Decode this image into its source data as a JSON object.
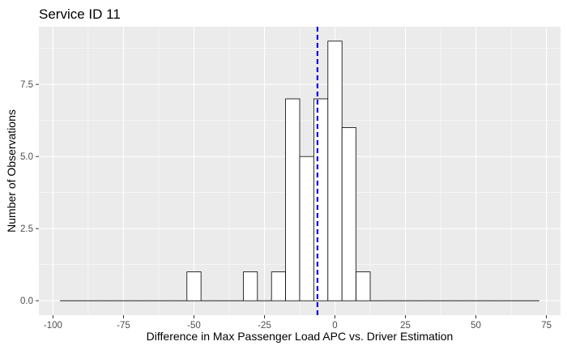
{
  "chart_data": {
    "type": "bar",
    "title": "Service ID 11",
    "xlabel": "Difference in Max Passenger Load APC vs. Driver Estimation",
    "ylabel": "Number of Observations",
    "xlim": [
      -105,
      80
    ],
    "ylim": [
      -0.5,
      9.5
    ],
    "xticks": [
      -100,
      -75,
      -50,
      -25,
      0,
      25,
      50,
      75
    ],
    "xtick_labels": [
      "-100",
      "-75",
      "-50",
      "-25",
      "0",
      "25",
      "50",
      "75"
    ],
    "yticks": [
      0,
      2.5,
      5,
      7.5
    ],
    "ytick_labels": [
      "0.0",
      "2.5",
      "5.0",
      "7.5"
    ],
    "bin_width": 5,
    "bins": [
      {
        "x0": -97.5,
        "x1": -92.5,
        "count": 0
      },
      {
        "x0": -92.5,
        "x1": -87.5,
        "count": 0
      },
      {
        "x0": -87.5,
        "x1": -82.5,
        "count": 0
      },
      {
        "x0": -82.5,
        "x1": -77.5,
        "count": 0
      },
      {
        "x0": -77.5,
        "x1": -72.5,
        "count": 0
      },
      {
        "x0": -72.5,
        "x1": -67.5,
        "count": 0
      },
      {
        "x0": -67.5,
        "x1": -62.5,
        "count": 0
      },
      {
        "x0": -62.5,
        "x1": -57.5,
        "count": 0
      },
      {
        "x0": -57.5,
        "x1": -52.5,
        "count": 0
      },
      {
        "x0": -52.5,
        "x1": -47.5,
        "count": 1
      },
      {
        "x0": -47.5,
        "x1": -42.5,
        "count": 0
      },
      {
        "x0": -42.5,
        "x1": -37.5,
        "count": 0
      },
      {
        "x0": -37.5,
        "x1": -32.5,
        "count": 0
      },
      {
        "x0": -32.5,
        "x1": -27.5,
        "count": 1
      },
      {
        "x0": -27.5,
        "x1": -22.5,
        "count": 0
      },
      {
        "x0": -22.5,
        "x1": -17.5,
        "count": 1
      },
      {
        "x0": -17.5,
        "x1": -12.5,
        "count": 7
      },
      {
        "x0": -12.5,
        "x1": -7.5,
        "count": 5
      },
      {
        "x0": -7.5,
        "x1": -2.5,
        "count": 7
      },
      {
        "x0": -2.5,
        "x1": 2.5,
        "count": 9
      },
      {
        "x0": 2.5,
        "x1": 7.5,
        "count": 6
      },
      {
        "x0": 7.5,
        "x1": 12.5,
        "count": 1
      },
      {
        "x0": 12.5,
        "x1": 17.5,
        "count": 0
      },
      {
        "x0": 17.5,
        "x1": 22.5,
        "count": 0
      },
      {
        "x0": 22.5,
        "x1": 27.5,
        "count": 0
      },
      {
        "x0": 27.5,
        "x1": 32.5,
        "count": 0
      },
      {
        "x0": 32.5,
        "x1": 37.5,
        "count": 0
      },
      {
        "x0": 37.5,
        "x1": 42.5,
        "count": 0
      },
      {
        "x0": 42.5,
        "x1": 47.5,
        "count": 0
      },
      {
        "x0": 47.5,
        "x1": 52.5,
        "count": 0
      },
      {
        "x0": 52.5,
        "x1": 57.5,
        "count": 0
      },
      {
        "x0": 57.5,
        "x1": 62.5,
        "count": 0
      },
      {
        "x0": 62.5,
        "x1": 67.5,
        "count": 0
      },
      {
        "x0": 67.5,
        "x1": 72.5,
        "count": 0
      }
    ],
    "reference_line": {
      "x": -6.2,
      "orientation": "vertical",
      "style": "dashed"
    },
    "grid": true,
    "legend": "none",
    "colors": {
      "panel_background": "#ebebeb",
      "grid_line": "#ffffff",
      "bar_fill": "#ffffff",
      "bar_outline": "#000000",
      "reference_line": "#0000cc",
      "tick": "#333333"
    }
  }
}
